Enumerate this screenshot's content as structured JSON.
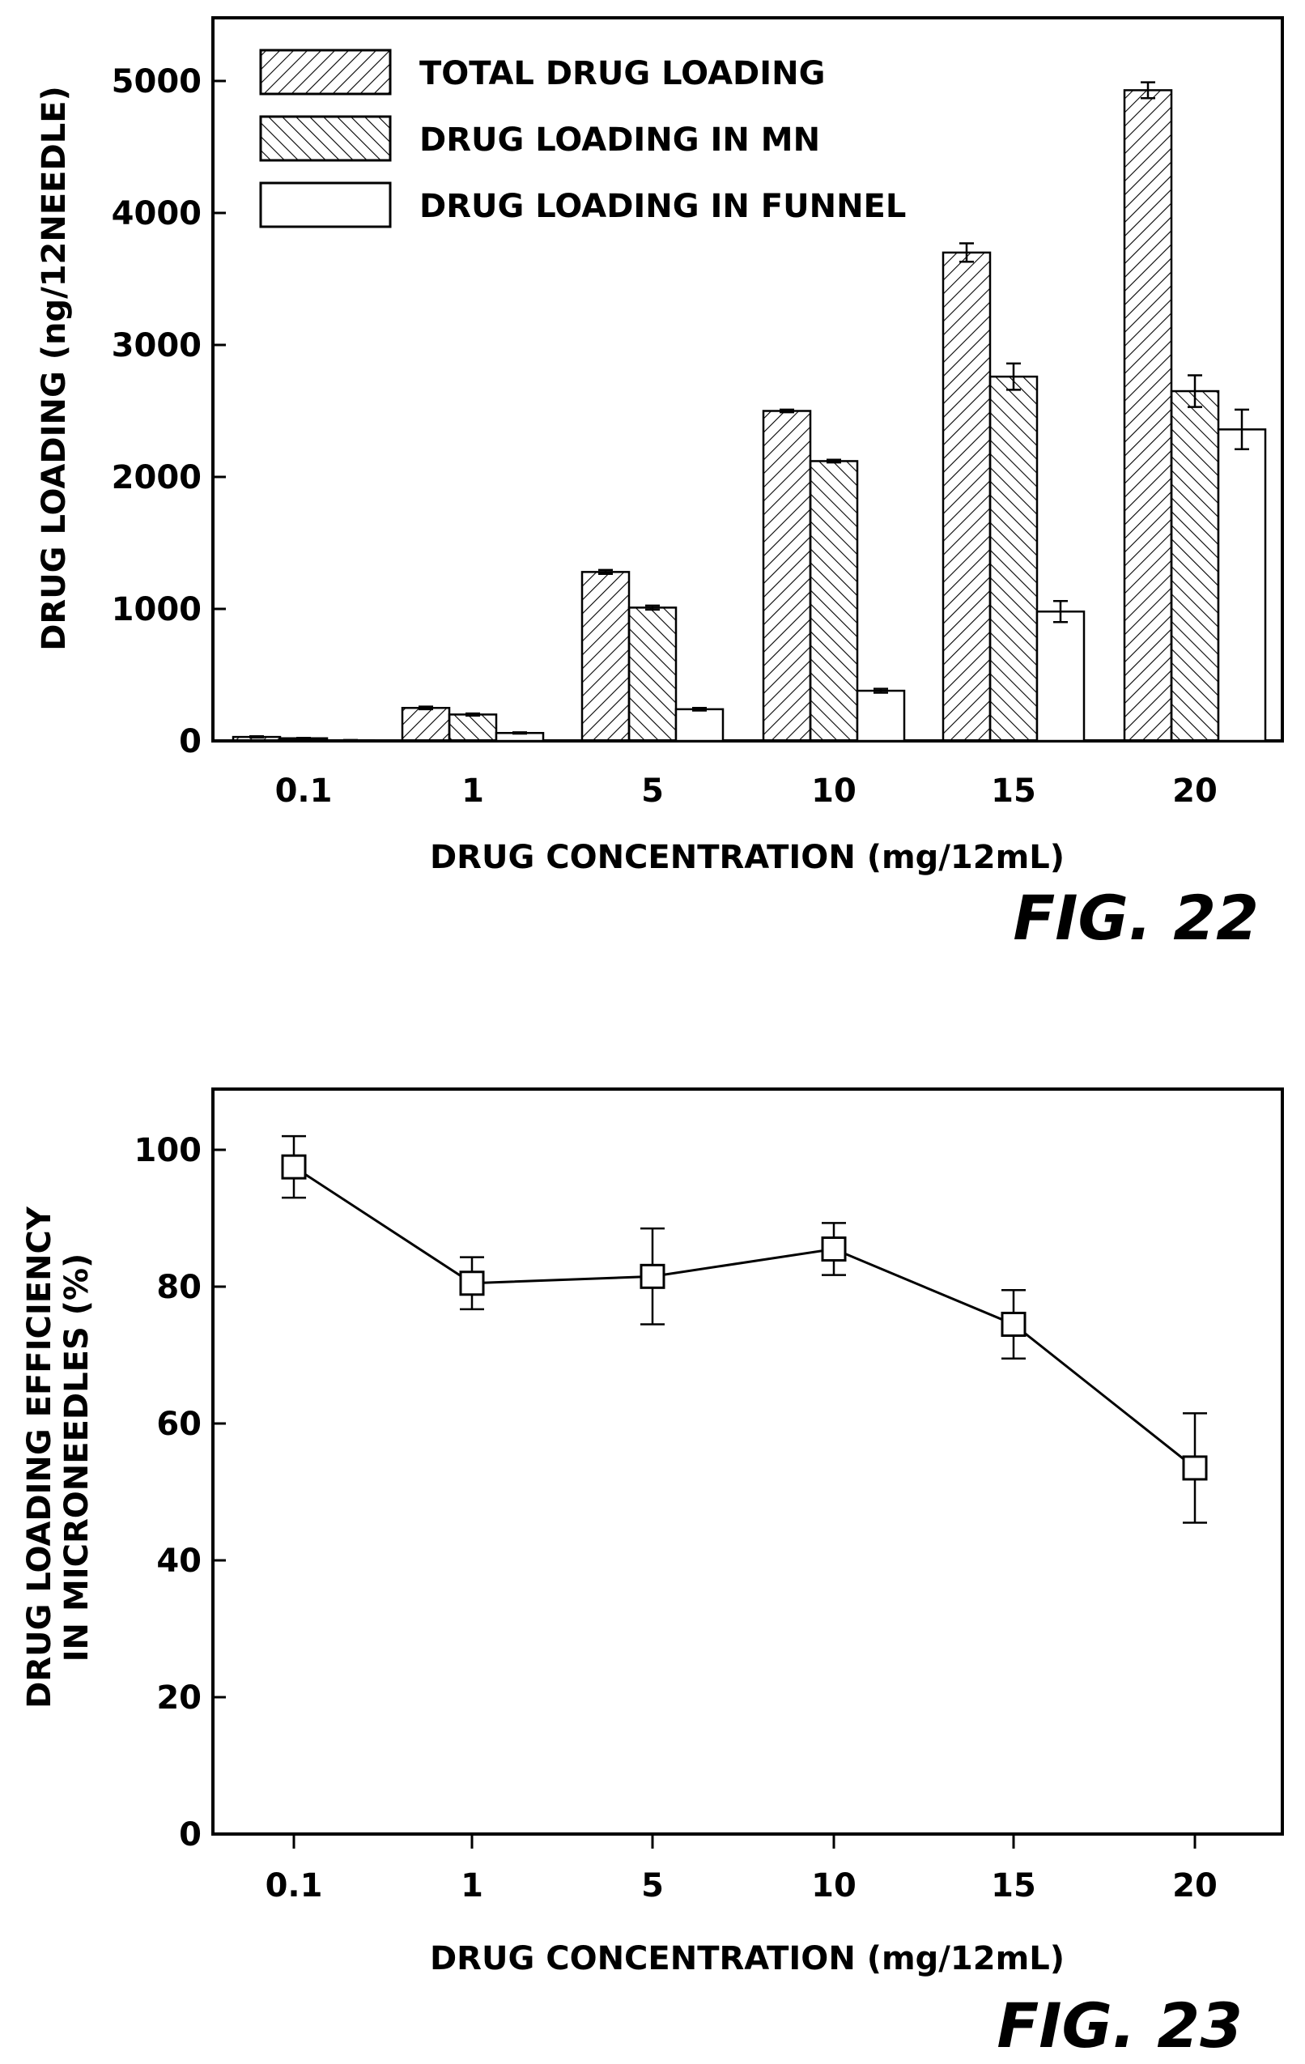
{
  "chart_data": [
    {
      "type": "bar",
      "categories": [
        "0.1",
        "1",
        "5",
        "10",
        "15",
        "20"
      ],
      "xlabel": "DRUG CONCENTRATION (mg/12mL)",
      "ylabel": "DRUG LOADING (ng/12NEEDLE)",
      "ylim": [
        0,
        5500
      ],
      "yticks": [
        0,
        1000,
        2000,
        3000,
        4000,
        5000
      ],
      "legend_position": "top-left",
      "grid": false,
      "series": [
        {
          "name": "TOTAL DRUG LOADING",
          "pattern": "back-hatch",
          "values": [
            30,
            250,
            1280,
            2500,
            3700,
            4930
          ],
          "errors": [
            5,
            10,
            15,
            10,
            70,
            60
          ]
        },
        {
          "name": "DRUG LOADING IN MN",
          "pattern": "forward-hatch",
          "values": [
            20,
            200,
            1010,
            2120,
            2760,
            2650
          ],
          "errors": [
            3,
            8,
            15,
            10,
            100,
            120
          ]
        },
        {
          "name": "DRUG LOADING IN FUNNEL",
          "pattern": "empty",
          "values": [
            5,
            60,
            240,
            380,
            980,
            2360
          ],
          "errors": [
            2,
            5,
            10,
            15,
            80,
            150
          ]
        }
      ],
      "figure_label": "FIG. 22"
    },
    {
      "type": "line",
      "categories": [
        "0.1",
        "1",
        "5",
        "10",
        "15",
        "20"
      ],
      "xlabel": "DRUG CONCENTRATION (mg/12mL)",
      "ylabel_lines": [
        "DRUG LOADING EFFICIENCY",
        "IN MICRONEEDLES (%)"
      ],
      "ylim": [
        0,
        105
      ],
      "yticks": [
        0,
        20,
        40,
        60,
        80,
        100
      ],
      "grid": false,
      "marker": "open-square",
      "series": [
        {
          "values": [
            97.5,
            80.5,
            81.5,
            85.5,
            74.5,
            53.5
          ],
          "errors": [
            4.5,
            3.8,
            7,
            3.8,
            5,
            8
          ]
        }
      ],
      "figure_label": "FIG. 23"
    }
  ]
}
